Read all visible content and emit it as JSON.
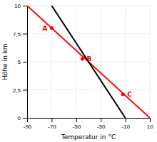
{
  "chart_data": {
    "type": "line",
    "xlabel": "Temperatur in °C",
    "ylabel": "Höhe in km",
    "xlim": [
      -90,
      10
    ],
    "ylim": [
      0,
      10
    ],
    "xticks": [
      -90,
      -70,
      -50,
      -30,
      -10,
      10
    ],
    "yticks": [
      0,
      {
        "value": 2.5,
        "label": "2,5"
      },
      5,
      {
        "value": 7.5,
        "label": "7,5"
      },
      10
    ],
    "grid": true,
    "series": [
      {
        "x": [
          -90,
          10
        ],
        "values": [
          10,
          0
        ],
        "color": "#ff0000"
      },
      {
        "x": [
          -70,
          -10
        ],
        "values": [
          10,
          0
        ],
        "color": "#000000"
      }
    ],
    "annotations": [
      {
        "text": "A",
        "x": -70,
        "y": 8.0,
        "color": "#ff0000"
      },
      {
        "text": "B",
        "x": -45,
        "y": 5.25,
        "color": "#ff0000"
      },
      {
        "text": "C",
        "x": -12,
        "y": 2.1,
        "color": "#ff0000"
      }
    ]
  }
}
